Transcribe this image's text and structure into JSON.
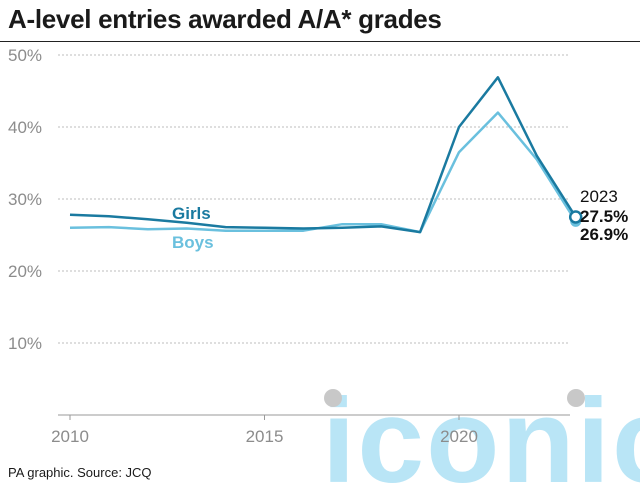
{
  "title": "A-level entries awarded A/A* grades",
  "source": "PA graphic. Source: JCQ",
  "watermark": "iconic",
  "colors": {
    "girls": "#1a7aa0",
    "boys": "#6ac0de",
    "grid": "#bdbdbd",
    "axis_text": "#8c8c8c"
  },
  "chart_data": {
    "type": "line",
    "x": [
      2010,
      2011,
      2012,
      2013,
      2014,
      2015,
      2016,
      2017,
      2018,
      2019,
      2020,
      2021,
      2022,
      2023
    ],
    "xticks": [
      "2010",
      "2015",
      "2020"
    ],
    "yticks": [
      "10%",
      "20%",
      "30%",
      "40%",
      "50%"
    ],
    "ylim": [
      0,
      50
    ],
    "grid": true,
    "series": [
      {
        "name": "Girls",
        "values": [
          27.8,
          27.6,
          27.2,
          26.7,
          26.1,
          26.0,
          25.9,
          26.0,
          26.2,
          25.4,
          40.0,
          46.9,
          36.0,
          27.5
        ]
      },
      {
        "name": "Boys",
        "values": [
          26.0,
          26.1,
          25.8,
          25.9,
          25.6,
          25.6,
          25.6,
          26.5,
          26.5,
          25.4,
          36.5,
          42.0,
          35.5,
          26.9
        ]
      }
    ],
    "annotation": {
      "year": "2023",
      "girls": "27.5%",
      "boys": "26.9%"
    }
  }
}
